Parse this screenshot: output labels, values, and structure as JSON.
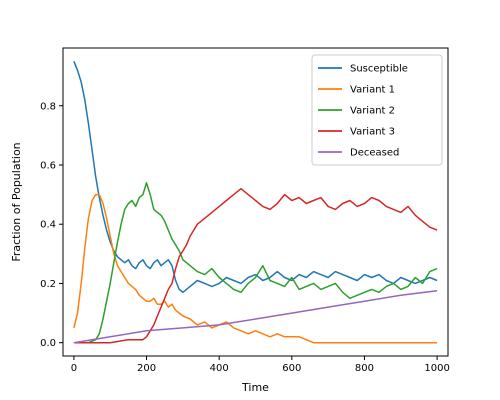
{
  "chart_data": {
    "type": "line",
    "xlabel": "Time",
    "ylabel": "Fraction of Population",
    "xlim": [
      -30,
      1030
    ],
    "ylim": [
      -0.045,
      0.995
    ],
    "xticks": [
      0,
      200,
      400,
      600,
      800,
      1000
    ],
    "xtick_labels": [
      "0",
      "200",
      "400",
      "600",
      "800",
      "1000"
    ],
    "yticks": [
      0.0,
      0.2,
      0.4,
      0.6,
      0.8
    ],
    "ytick_labels": [
      "0.0",
      "0.2",
      "0.4",
      "0.6",
      "0.8"
    ],
    "grid": false,
    "legend_position": "top-right",
    "series": [
      {
        "name": "Susceptible",
        "color": "#1f77b4",
        "x": [
          0,
          10,
          20,
          30,
          40,
          50,
          60,
          70,
          80,
          90,
          100,
          110,
          120,
          130,
          140,
          150,
          160,
          170,
          180,
          190,
          200,
          210,
          220,
          230,
          240,
          250,
          260,
          270,
          280,
          290,
          300,
          320,
          340,
          360,
          380,
          400,
          420,
          440,
          460,
          480,
          500,
          520,
          540,
          560,
          580,
          600,
          620,
          640,
          660,
          680,
          700,
          720,
          740,
          760,
          780,
          800,
          820,
          840,
          860,
          880,
          900,
          920,
          940,
          960,
          980,
          1000
        ],
        "values": [
          0.95,
          0.92,
          0.88,
          0.82,
          0.74,
          0.65,
          0.56,
          0.49,
          0.43,
          0.38,
          0.34,
          0.31,
          0.29,
          0.28,
          0.27,
          0.28,
          0.26,
          0.25,
          0.27,
          0.28,
          0.26,
          0.25,
          0.27,
          0.28,
          0.26,
          0.27,
          0.28,
          0.26,
          0.21,
          0.18,
          0.17,
          0.19,
          0.21,
          0.2,
          0.19,
          0.2,
          0.22,
          0.21,
          0.2,
          0.22,
          0.23,
          0.21,
          0.22,
          0.24,
          0.22,
          0.21,
          0.23,
          0.22,
          0.24,
          0.23,
          0.22,
          0.24,
          0.23,
          0.22,
          0.21,
          0.23,
          0.22,
          0.23,
          0.21,
          0.2,
          0.22,
          0.21,
          0.2,
          0.21,
          0.22,
          0.21
        ]
      },
      {
        "name": "Variant 1",
        "color": "#ff7f0e",
        "x": [
          0,
          10,
          20,
          30,
          40,
          50,
          60,
          70,
          80,
          90,
          100,
          110,
          120,
          130,
          140,
          150,
          160,
          170,
          180,
          190,
          200,
          210,
          220,
          230,
          240,
          250,
          260,
          270,
          280,
          290,
          300,
          320,
          340,
          360,
          380,
          400,
          420,
          440,
          460,
          480,
          500,
          520,
          540,
          560,
          580,
          600,
          620,
          640,
          660,
          680,
          700,
          750,
          800,
          850,
          900,
          950,
          1000
        ],
        "values": [
          0.05,
          0.1,
          0.2,
          0.32,
          0.42,
          0.48,
          0.5,
          0.5,
          0.47,
          0.42,
          0.36,
          0.3,
          0.26,
          0.24,
          0.22,
          0.2,
          0.19,
          0.18,
          0.16,
          0.15,
          0.14,
          0.14,
          0.15,
          0.13,
          0.13,
          0.14,
          0.12,
          0.13,
          0.11,
          0.1,
          0.09,
          0.08,
          0.06,
          0.07,
          0.05,
          0.06,
          0.07,
          0.05,
          0.04,
          0.03,
          0.04,
          0.03,
          0.02,
          0.03,
          0.02,
          0.02,
          0.02,
          0.01,
          0,
          0,
          0,
          0,
          0,
          0,
          0,
          0,
          0
        ]
      },
      {
        "name": "Variant 2",
        "color": "#2ca02c",
        "x": [
          0,
          20,
          40,
          60,
          70,
          80,
          90,
          100,
          110,
          120,
          130,
          140,
          150,
          160,
          170,
          180,
          190,
          200,
          210,
          220,
          230,
          240,
          250,
          260,
          270,
          280,
          290,
          300,
          310,
          320,
          340,
          360,
          380,
          400,
          420,
          440,
          460,
          480,
          500,
          520,
          540,
          560,
          580,
          600,
          620,
          640,
          660,
          680,
          700,
          720,
          740,
          760,
          780,
          800,
          820,
          840,
          860,
          880,
          900,
          920,
          940,
          960,
          980,
          1000
        ],
        "values": [
          0,
          0,
          0,
          0.01,
          0.03,
          0.08,
          0.14,
          0.2,
          0.27,
          0.34,
          0.4,
          0.45,
          0.47,
          0.48,
          0.46,
          0.49,
          0.5,
          0.54,
          0.5,
          0.45,
          0.44,
          0.43,
          0.41,
          0.38,
          0.35,
          0.33,
          0.31,
          0.28,
          0.27,
          0.26,
          0.24,
          0.23,
          0.25,
          0.22,
          0.2,
          0.18,
          0.17,
          0.2,
          0.22,
          0.26,
          0.21,
          0.2,
          0.19,
          0.22,
          0.18,
          0.19,
          0.2,
          0.18,
          0.19,
          0.2,
          0.17,
          0.15,
          0.16,
          0.17,
          0.18,
          0.17,
          0.19,
          0.2,
          0.18,
          0.19,
          0.22,
          0.2,
          0.24,
          0.25
        ]
      },
      {
        "name": "Variant 3",
        "color": "#d62728",
        "x": [
          0,
          50,
          100,
          150,
          170,
          190,
          200,
          210,
          220,
          230,
          240,
          250,
          260,
          270,
          280,
          290,
          300,
          310,
          320,
          330,
          340,
          360,
          380,
          400,
          420,
          440,
          460,
          480,
          500,
          520,
          540,
          560,
          580,
          600,
          620,
          640,
          660,
          680,
          700,
          720,
          740,
          760,
          780,
          800,
          820,
          840,
          860,
          880,
          900,
          920,
          940,
          960,
          980,
          1000
        ],
        "values": [
          0,
          0,
          0,
          0.01,
          0.01,
          0.01,
          0.02,
          0.04,
          0.06,
          0.09,
          0.12,
          0.15,
          0.18,
          0.2,
          0.25,
          0.29,
          0.31,
          0.33,
          0.36,
          0.38,
          0.4,
          0.42,
          0.44,
          0.46,
          0.48,
          0.5,
          0.52,
          0.5,
          0.48,
          0.46,
          0.45,
          0.47,
          0.5,
          0.48,
          0.49,
          0.47,
          0.48,
          0.49,
          0.46,
          0.45,
          0.47,
          0.48,
          0.46,
          0.47,
          0.49,
          0.48,
          0.46,
          0.45,
          0.44,
          0.46,
          0.43,
          0.41,
          0.39,
          0.38
        ]
      },
      {
        "name": "Deceased",
        "color": "#9467bd",
        "x": [
          0,
          100,
          200,
          300,
          400,
          500,
          600,
          700,
          800,
          900,
          1000
        ],
        "values": [
          0,
          0.02,
          0.04,
          0.05,
          0.06,
          0.08,
          0.1,
          0.12,
          0.14,
          0.16,
          0.175
        ]
      }
    ]
  }
}
